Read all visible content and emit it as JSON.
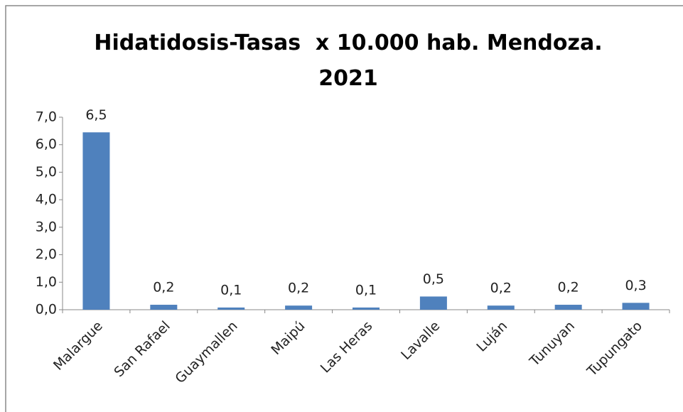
{
  "chart_data": {
    "type": "bar",
    "title": "Hidatidosis-Tasas  x 10.000 hab. Mendoza. 2021",
    "categories": [
      "Malargue",
      "San Rafael",
      "Guaymallen",
      "Maipú",
      "Las Heras",
      "Lavalle",
      "Luján",
      "Tunuyan",
      "Tupungato"
    ],
    "values": [
      6.45,
      0.18,
      0.08,
      0.15,
      0.08,
      0.48,
      0.15,
      0.18,
      0.25
    ],
    "value_labels": [
      "6,5",
      "0,2",
      "0,1",
      "0,2",
      "0,1",
      "0,5",
      "0,2",
      "0,2",
      "0,3"
    ],
    "color": "#4f81bd",
    "ylim": [
      0,
      7
    ],
    "yticks": [
      {
        "value": 0,
        "label": "0,0"
      },
      {
        "value": 1,
        "label": "1,0"
      },
      {
        "value": 2,
        "label": "2,0"
      },
      {
        "value": 3,
        "label": "3,0"
      },
      {
        "value": 4,
        "label": "4,0"
      },
      {
        "value": 5,
        "label": "5,0"
      },
      {
        "value": 6,
        "label": "6,0"
      },
      {
        "value": 7,
        "label": "7,0"
      }
    ],
    "grid": false
  }
}
